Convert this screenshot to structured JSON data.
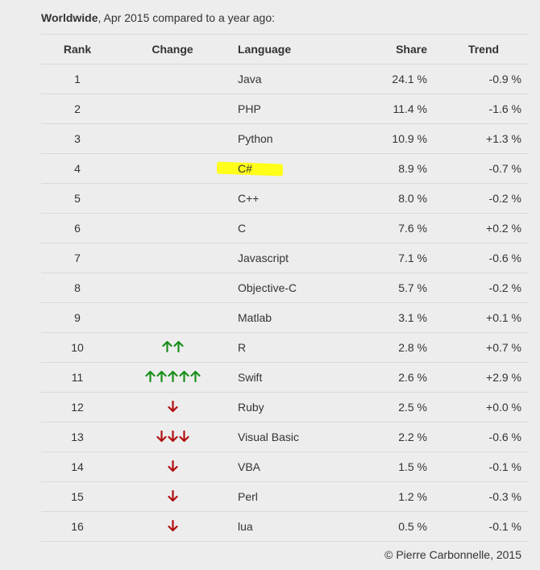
{
  "header": {
    "bold": "Worldwide",
    "rest": ", Apr 2015 compared to a year ago:"
  },
  "columns": {
    "rank": "Rank",
    "change": "Change",
    "language": "Language",
    "share": "Share",
    "trend": "Trend"
  },
  "colors": {
    "up": "#1a8f1a",
    "down": "#b01010",
    "highlight": "#ffff1a"
  },
  "rows": [
    {
      "rank": "1",
      "change_up": 0,
      "change_down": 0,
      "language": "Java",
      "share": "24.1 %",
      "trend": "-0.9 %"
    },
    {
      "rank": "2",
      "change_up": 0,
      "change_down": 0,
      "language": "PHP",
      "share": "11.4 %",
      "trend": "-1.6 %"
    },
    {
      "rank": "3",
      "change_up": 0,
      "change_down": 0,
      "language": "Python",
      "share": "10.9 %",
      "trend": "+1.3 %"
    },
    {
      "rank": "4",
      "change_up": 0,
      "change_down": 0,
      "language": "C#",
      "share": "8.9 %",
      "trend": "-0.7 %",
      "highlighted": true
    },
    {
      "rank": "5",
      "change_up": 0,
      "change_down": 0,
      "language": "C++",
      "share": "8.0 %",
      "trend": "-0.2 %"
    },
    {
      "rank": "6",
      "change_up": 0,
      "change_down": 0,
      "language": "C",
      "share": "7.6 %",
      "trend": "+0.2 %"
    },
    {
      "rank": "7",
      "change_up": 0,
      "change_down": 0,
      "language": "Javascript",
      "share": "7.1 %",
      "trend": "-0.6 %"
    },
    {
      "rank": "8",
      "change_up": 0,
      "change_down": 0,
      "language": "Objective-C",
      "share": "5.7 %",
      "trend": "-0.2 %"
    },
    {
      "rank": "9",
      "change_up": 0,
      "change_down": 0,
      "language": "Matlab",
      "share": "3.1 %",
      "trend": "+0.1 %"
    },
    {
      "rank": "10",
      "change_up": 2,
      "change_down": 0,
      "language": "R",
      "share": "2.8 %",
      "trend": "+0.7 %"
    },
    {
      "rank": "11",
      "change_up": 5,
      "change_down": 0,
      "language": "Swift",
      "share": "2.6 %",
      "trend": "+2.9 %"
    },
    {
      "rank": "12",
      "change_up": 0,
      "change_down": 1,
      "language": "Ruby",
      "share": "2.5 %",
      "trend": "+0.0 %"
    },
    {
      "rank": "13",
      "change_up": 0,
      "change_down": 3,
      "language": "Visual Basic",
      "share": "2.2 %",
      "trend": "-0.6 %"
    },
    {
      "rank": "14",
      "change_up": 0,
      "change_down": 1,
      "language": "VBA",
      "share": "1.5 %",
      "trend": "-0.1 %"
    },
    {
      "rank": "15",
      "change_up": 0,
      "change_down": 1,
      "language": "Perl",
      "share": "1.2 %",
      "trend": "-0.3 %"
    },
    {
      "rank": "16",
      "change_up": 0,
      "change_down": 1,
      "language": "lua",
      "share": "0.5 %",
      "trend": "-0.1 %"
    }
  ],
  "footer": "© Pierre Carbonnelle, 2015"
}
